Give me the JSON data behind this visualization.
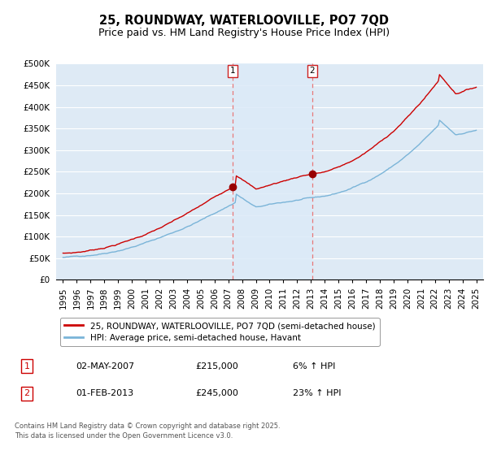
{
  "title": "25, ROUNDWAY, WATERLOOVILLE, PO7 7QD",
  "subtitle": "Price paid vs. HM Land Registry's House Price Index (HPI)",
  "ylim": [
    0,
    500000
  ],
  "yticks": [
    0,
    50000,
    100000,
    150000,
    200000,
    250000,
    300000,
    350000,
    400000,
    450000,
    500000
  ],
  "ytick_labels": [
    "£0",
    "£50K",
    "£100K",
    "£150K",
    "£200K",
    "£250K",
    "£300K",
    "£350K",
    "£400K",
    "£450K",
    "£500K"
  ],
  "background_color": "#ffffff",
  "plot_bg_color": "#deeaf5",
  "grid_color": "#ffffff",
  "red_line_color": "#cc0000",
  "blue_line_color": "#7ab4d8",
  "vline_color": "#e87878",
  "fill_color": "#c5d9ee",
  "sale1_date": 2007.33,
  "sale1_price": 215000,
  "sale2_date": 2013.08,
  "sale2_price": 245000,
  "legend_line1": "25, ROUNDWAY, WATERLOOVILLE, PO7 7QD (semi-detached house)",
  "legend_line2": "HPI: Average price, semi-detached house, Havant",
  "table_row1": [
    "1",
    "02-MAY-2007",
    "£215,000",
    "6% ↑ HPI"
  ],
  "table_row2": [
    "2",
    "01-FEB-2013",
    "£245,000",
    "23% ↑ HPI"
  ],
  "footnote": "Contains HM Land Registry data © Crown copyright and database right 2025.\nThis data is licensed under the Open Government Licence v3.0.",
  "title_fontsize": 10.5,
  "subtitle_fontsize": 9,
  "tick_fontsize": 7.5,
  "legend_fontsize": 7.5,
  "xticks": [
    1995,
    1996,
    1997,
    1998,
    1999,
    2000,
    2001,
    2002,
    2003,
    2004,
    2005,
    2006,
    2007,
    2008,
    2009,
    2010,
    2011,
    2012,
    2013,
    2014,
    2015,
    2016,
    2017,
    2018,
    2019,
    2020,
    2021,
    2022,
    2023,
    2024,
    2025
  ],
  "xlim": [
    1994.5,
    2025.5
  ]
}
